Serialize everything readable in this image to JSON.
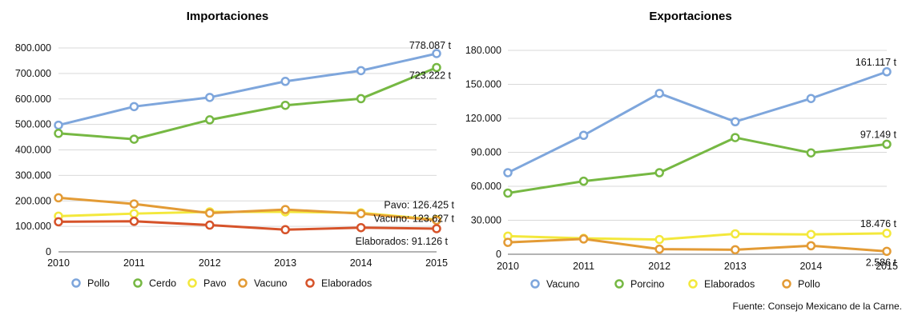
{
  "colors": {
    "blue": "#7ea6dc",
    "green": "#76b843",
    "yellow": "#f3e83c",
    "orange": "#e39b35",
    "red": "#d6532a"
  },
  "source_text": "Fuente: Consejo Mexicano de la Carne.",
  "chart_data": [
    {
      "type": "line",
      "title": "Importaciones",
      "x": [
        "2010",
        "2011",
        "2012",
        "2013",
        "2014",
        "2015"
      ],
      "ylim": [
        0,
        800000
      ],
      "yticks": [
        {
          "value": 0,
          "label": "0"
        },
        {
          "value": 100000,
          "label": "100.000"
        },
        {
          "value": 200000,
          "label": "200.000"
        },
        {
          "value": 300000,
          "label": "300.000"
        },
        {
          "value": 400000,
          "label": "400.000"
        },
        {
          "value": 500000,
          "label": "500.000"
        },
        {
          "value": 600000,
          "label": "600.000"
        },
        {
          "value": 700000,
          "label": "700.000"
        },
        {
          "value": 800000,
          "label": "800.000"
        }
      ],
      "grid": true,
      "legend": "bottom",
      "series": [
        {
          "name": "Pollo",
          "color": "blue",
          "values": [
            497000,
            570000,
            606000,
            669000,
            711000,
            778087
          ]
        },
        {
          "name": "Cerdo",
          "color": "green",
          "values": [
            465000,
            442000,
            518000,
            575000,
            601000,
            723222
          ]
        },
        {
          "name": "Pavo",
          "color": "yellow",
          "values": [
            140000,
            150000,
            157000,
            157000,
            153000,
            126425
          ]
        },
        {
          "name": "Vacuno",
          "color": "orange",
          "values": [
            212000,
            188000,
            152000,
            166000,
            150000,
            123627
          ]
        },
        {
          "name": "Elaborados",
          "color": "red",
          "values": [
            118000,
            120000,
            105000,
            87000,
            95000,
            91126
          ]
        }
      ],
      "annotations": [
        {
          "series": "Pollo",
          "text": "778.087 t"
        },
        {
          "series": "Cerdo",
          "text": "723.222 t"
        },
        {
          "series": "Pavo",
          "text": "Pavo: 126.425 t"
        },
        {
          "series": "Vacuno",
          "text": "Vacuno: 123.627 t"
        },
        {
          "series": "Elaborados",
          "text": "Elaborados: 91.126 t"
        }
      ]
    },
    {
      "type": "line",
      "title": "Exportaciones",
      "x": [
        "2010",
        "2011",
        "2012",
        "2013",
        "2014",
        "2015"
      ],
      "ylim": [
        0,
        180000
      ],
      "yticks": [
        {
          "value": 0,
          "label": "0"
        },
        {
          "value": 30000,
          "label": "30.000"
        },
        {
          "value": 60000,
          "label": "60.000"
        },
        {
          "value": 90000,
          "label": "90.000"
        },
        {
          "value": 120000,
          "label": "120.000"
        },
        {
          "value": 150000,
          "label": "150.000"
        },
        {
          "value": 180000,
          "label": "180.000"
        }
      ],
      "grid": true,
      "legend": "bottom",
      "series": [
        {
          "name": "Vacuno",
          "color": "blue",
          "values": [
            72000,
            105000,
            142000,
            117000,
            137500,
            161117
          ]
        },
        {
          "name": "Porcino",
          "color": "green",
          "values": [
            54000,
            64500,
            72000,
            103000,
            89500,
            97149
          ]
        },
        {
          "name": "Elaborados",
          "color": "yellow",
          "values": [
            16000,
            14000,
            13000,
            18000,
            17500,
            18476
          ]
        },
        {
          "name": "Pollo",
          "color": "orange",
          "values": [
            10500,
            13500,
            4500,
            4000,
            7500,
            2586
          ]
        }
      ],
      "annotations": [
        {
          "series": "Vacuno",
          "text": "161.117 t"
        },
        {
          "series": "Porcino",
          "text": "97.149 t"
        },
        {
          "series": "Elaborados",
          "text": "18.476 t"
        },
        {
          "series": "Pollo",
          "text": "2.586 t"
        }
      ]
    }
  ]
}
